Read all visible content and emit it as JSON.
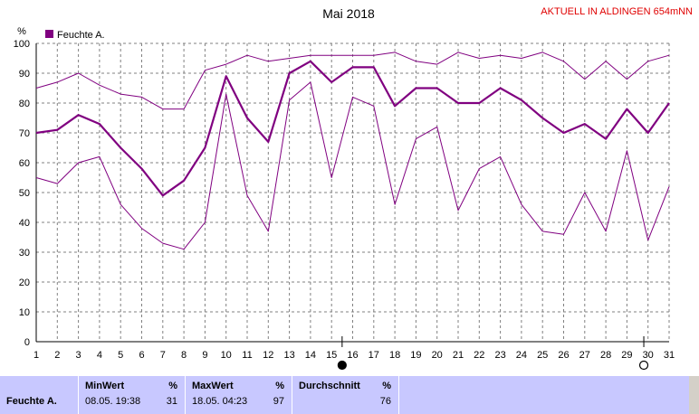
{
  "header": {
    "title": "Mai 2018",
    "location": "AKTUELL IN ALDINGEN 654mNN",
    "unit": "%"
  },
  "legend": {
    "label": "Feuchte A."
  },
  "chart_data": {
    "type": "line",
    "title": "Mai 2018",
    "ylabel": "%",
    "ylim": [
      0,
      100
    ],
    "yticks": [
      0,
      10,
      20,
      30,
      40,
      50,
      60,
      70,
      80,
      90,
      100
    ],
    "x": [
      1,
      2,
      3,
      4,
      5,
      6,
      7,
      8,
      9,
      10,
      11,
      12,
      13,
      14,
      15,
      16,
      17,
      18,
      19,
      20,
      21,
      22,
      23,
      24,
      25,
      26,
      27,
      28,
      29,
      30,
      31
    ],
    "series": [
      {
        "name": "Feuchte A.",
        "role": "average",
        "values": [
          70,
          71,
          76,
          73,
          65,
          58,
          49,
          54,
          65,
          89,
          75,
          67,
          90,
          94,
          87,
          92,
          92,
          79,
          85,
          85,
          80,
          80,
          85,
          81,
          75,
          70,
          73,
          68,
          78,
          70,
          80
        ]
      },
      {
        "name": "",
        "role": "max",
        "values": [
          85,
          87,
          90,
          86,
          83,
          82,
          78,
          78,
          91,
          93,
          96,
          94,
          95,
          96,
          96,
          96,
          96,
          97,
          94,
          93,
          97,
          95,
          96,
          95,
          97,
          94,
          88,
          94,
          88,
          94,
          96
        ]
      },
      {
        "name": "",
        "role": "min",
        "values": [
          55,
          53,
          60,
          62,
          46,
          38,
          33,
          31,
          40,
          83,
          49,
          37,
          81,
          87,
          55,
          82,
          79,
          46,
          68,
          72,
          44,
          58,
          62,
          46,
          37,
          36,
          50,
          37,
          64,
          34,
          52
        ]
      }
    ],
    "moon_markers": [
      {
        "day": 15.5,
        "phase": "new-moon"
      },
      {
        "day": 29.8,
        "phase": "full-moon"
      }
    ],
    "grid": true,
    "colors": {
      "line": "#800080",
      "grid": "#808080",
      "background": "#ffffff"
    }
  },
  "stats": {
    "row_label": "Feuchte A.",
    "min": {
      "header": "MinWert",
      "unit": "%",
      "date": "08.05.  19:38",
      "value": "31"
    },
    "max": {
      "header": "MaxWert",
      "unit": "%",
      "date": "18.05.  04:23",
      "value": "97"
    },
    "avg": {
      "header": "Durchschnitt",
      "unit": "%",
      "value": "76"
    }
  }
}
